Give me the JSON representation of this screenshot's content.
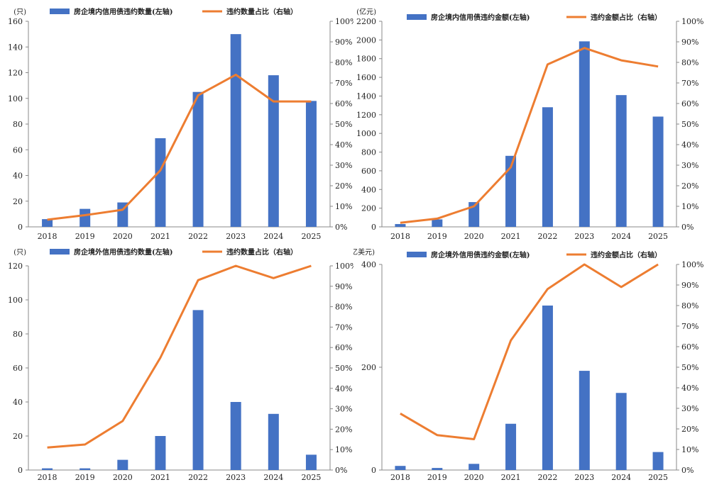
{
  "chart_data": [
    {
      "type": "bar",
      "categories": [
        "2018",
        "2019",
        "2020",
        "2021",
        "2022",
        "2023",
        "2024",
        "2025"
      ],
      "left_unit": "(只)",
      "left_ticks": [
        "0",
        "20",
        "40",
        "60",
        "80",
        "100",
        "120",
        "140",
        "160"
      ],
      "left_max": 160,
      "right_ticks": [
        "0%",
        "10%",
        "20%",
        "30%",
        "40%",
        "50%",
        "60%",
        "70%",
        "80%",
        "90%",
        "100%"
      ],
      "series": [
        {
          "name": "房企境内信用债违约数量(左轴)",
          "kind": "bar",
          "axis": "left",
          "color": "#4472C4",
          "values": [
            6,
            14,
            19,
            69,
            105,
            150,
            118,
            98
          ]
        },
        {
          "name": "违约数量占比（右轴）",
          "kind": "line",
          "axis": "right",
          "color": "#ED7D31",
          "values": [
            0.035,
            0.057,
            0.083,
            0.275,
            0.64,
            0.74,
            0.61,
            0.61
          ]
        }
      ]
    },
    {
      "type": "bar",
      "categories": [
        "2018",
        "2019",
        "2020",
        "2021",
        "2022",
        "2023",
        "2024",
        "2025"
      ],
      "left_unit": "(亿元)",
      "left_ticks": [
        "0",
        "200",
        "400",
        "600",
        "800",
        "1000",
        "1200",
        "1400",
        "1600",
        "1800",
        "2000",
        "2200"
      ],
      "left_max": 2200,
      "right_ticks": [
        "0%",
        "10%",
        "20%",
        "30%",
        "40%",
        "50%",
        "60%",
        "70%",
        "80%",
        "90%",
        "100%"
      ],
      "series": [
        {
          "name": "房企境内信用债违约金额(左轴)",
          "kind": "bar",
          "axis": "left",
          "color": "#4472C4",
          "values": [
            30,
            80,
            265,
            760,
            1280,
            1985,
            1410,
            1180
          ]
        },
        {
          "name": "违约金额占比（右轴）",
          "kind": "line",
          "axis": "right",
          "color": "#ED7D31",
          "values": [
            0.02,
            0.04,
            0.1,
            0.29,
            0.79,
            0.87,
            0.81,
            0.78
          ]
        }
      ]
    },
    {
      "type": "bar",
      "categories": [
        "2018",
        "2019",
        "2020",
        "2021",
        "2022",
        "2023",
        "2024",
        "2025"
      ],
      "left_unit": "(只)",
      "left_ticks": [
        "0",
        "20",
        "40",
        "60",
        "80",
        "100",
        "120"
      ],
      "left_max": 120,
      "right_ticks": [
        "0%",
        "10%",
        "20%",
        "30%",
        "40%",
        "50%",
        "60%",
        "70%",
        "80%",
        "90%",
        "100%"
      ],
      "series": [
        {
          "name": "房企境外信用债违约数量(左轴)",
          "kind": "bar",
          "axis": "left",
          "color": "#4472C4",
          "values": [
            1,
            1,
            6,
            20,
            94,
            40,
            33,
            9
          ]
        },
        {
          "name": "违约数量占比（右轴）",
          "kind": "line",
          "axis": "right",
          "color": "#ED7D31",
          "values": [
            0.11,
            0.125,
            0.24,
            0.55,
            0.93,
            1.0,
            0.94,
            1.0
          ]
        }
      ]
    },
    {
      "type": "bar",
      "categories": [
        "2018",
        "2019",
        "2020",
        "2021",
        "2022",
        "2023",
        "2024",
        "2025"
      ],
      "left_unit": "(亿美元)",
      "left_ticks": [
        "0",
        "200",
        "400"
      ],
      "left_max": 400,
      "right_ticks": [
        "0%",
        "10%",
        "20%",
        "30%",
        "40%",
        "50%",
        "60%",
        "70%",
        "80%",
        "90%",
        "100%"
      ],
      "series": [
        {
          "name": "房企境外信用债违约金额(左轴)",
          "kind": "bar",
          "axis": "left",
          "color": "#4472C4",
          "values": [
            8,
            4,
            12,
            90,
            320,
            193,
            150,
            35
          ]
        },
        {
          "name": "违约金额占比（右轴）",
          "kind": "line",
          "axis": "right",
          "color": "#ED7D31",
          "values": [
            0.275,
            0.17,
            0.15,
            0.63,
            0.88,
            1.0,
            0.89,
            1.0
          ]
        }
      ]
    }
  ]
}
